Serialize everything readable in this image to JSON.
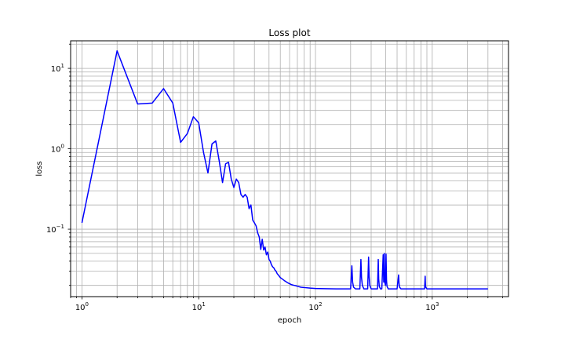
{
  "chart_data": {
    "type": "line",
    "title": "Loss plot",
    "xlabel": "epoch",
    "ylabel": "loss",
    "xscale": "log",
    "yscale": "log",
    "xlim": [
      0.8,
      4500
    ],
    "ylim": [
      0.0145,
      22
    ],
    "grid": "on (major and minor)",
    "x_ticks": [
      {
        "value": 1,
        "base": "10",
        "exp": "0"
      },
      {
        "value": 10,
        "base": "10",
        "exp": "1"
      },
      {
        "value": 100,
        "base": "10",
        "exp": "2"
      },
      {
        "value": 1000,
        "base": "10",
        "exp": "3"
      }
    ],
    "y_ticks": [
      {
        "value": 0.1,
        "base": "10",
        "exp": "−1"
      },
      {
        "value": 1,
        "base": "10",
        "exp": "0"
      },
      {
        "value": 10,
        "base": "10",
        "exp": "1"
      }
    ],
    "series": [
      {
        "color": "#0000ff",
        "x": [
          1,
          2,
          3,
          4,
          5,
          6,
          7,
          8,
          9,
          10,
          11,
          12,
          13,
          14,
          15,
          16,
          17,
          18,
          19,
          20,
          21,
          22,
          23,
          24,
          25,
          26,
          27,
          28,
          29,
          30,
          31,
          32,
          33,
          34,
          35,
          36,
          37,
          38,
          39,
          40,
          41,
          42,
          43,
          44,
          45,
          46,
          47,
          48,
          49,
          50,
          52,
          54,
          56,
          58,
          60,
          62,
          64,
          66,
          68,
          70,
          75,
          80,
          90,
          100,
          120,
          150,
          180,
          200,
          205,
          208,
          212,
          220,
          240,
          245,
          248,
          252,
          260,
          280,
          285,
          288,
          292,
          300,
          340,
          345,
          348,
          352,
          360,
          370,
          380,
          384,
          388,
          392,
          398,
          402,
          406,
          410,
          420,
          500,
          515,
          520,
          525,
          540,
          600,
          860,
          870,
          875,
          880,
          900,
          1000,
          1500,
          2000,
          3000
        ],
        "y": [
          0.12,
          16.5,
          3.6,
          3.7,
          5.6,
          3.7,
          1.2,
          1.55,
          2.5,
          2.1,
          0.9,
          0.5,
          1.15,
          1.25,
          0.7,
          0.38,
          0.65,
          0.68,
          0.42,
          0.33,
          0.42,
          0.38,
          0.27,
          0.25,
          0.27,
          0.25,
          0.18,
          0.2,
          0.13,
          0.12,
          0.11,
          0.09,
          0.08,
          0.056,
          0.075,
          0.055,
          0.06,
          0.048,
          0.052,
          0.042,
          0.04,
          0.036,
          0.034,
          0.033,
          0.031,
          0.03,
          0.028,
          0.027,
          0.026,
          0.025,
          0.024,
          0.023,
          0.0222,
          0.0215,
          0.021,
          0.0205,
          0.0202,
          0.02,
          0.0198,
          0.0195,
          0.019,
          0.0188,
          0.0185,
          0.0183,
          0.0182,
          0.0181,
          0.0181,
          0.0181,
          0.035,
          0.022,
          0.019,
          0.0181,
          0.0181,
          0.042,
          0.025,
          0.02,
          0.0181,
          0.0181,
          0.045,
          0.026,
          0.02,
          0.0181,
          0.0181,
          0.042,
          0.024,
          0.0195,
          0.0181,
          0.0181,
          0.048,
          0.022,
          0.05,
          0.022,
          0.02,
          0.049,
          0.023,
          0.0195,
          0.0181,
          0.0181,
          0.027,
          0.021,
          0.019,
          0.0181,
          0.0181,
          0.0181,
          0.026,
          0.02,
          0.019,
          0.0181,
          0.0181,
          0.0181,
          0.0181,
          0.0181
        ]
      }
    ]
  }
}
